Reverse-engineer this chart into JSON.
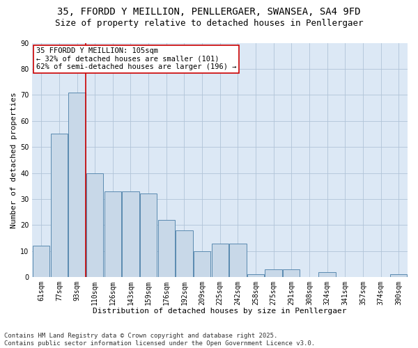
{
  "title_line1": "35, FFORDD Y MEILLION, PENLLERGAER, SWANSEA, SA4 9FD",
  "title_line2": "Size of property relative to detached houses in Penllergaer",
  "xlabel": "Distribution of detached houses by size in Penllergaer",
  "ylabel": "Number of detached properties",
  "categories": [
    "61sqm",
    "77sqm",
    "93sqm",
    "110sqm",
    "126sqm",
    "143sqm",
    "159sqm",
    "176sqm",
    "192sqm",
    "209sqm",
    "225sqm",
    "242sqm",
    "258sqm",
    "275sqm",
    "291sqm",
    "308sqm",
    "324sqm",
    "341sqm",
    "357sqm",
    "374sqm",
    "390sqm"
  ],
  "values": [
    12,
    55,
    71,
    40,
    33,
    33,
    32,
    22,
    18,
    10,
    13,
    13,
    1,
    3,
    3,
    0,
    2,
    0,
    0,
    0,
    1
  ],
  "bar_color": "#c8d8e8",
  "bar_edge_color": "#5a8ab0",
  "vline_x_index": 2,
  "vline_color": "#cc0000",
  "annotation_text": "35 FFORDD Y MEILLION: 105sqm\n← 32% of detached houses are smaller (101)\n62% of semi-detached houses are larger (196) →",
  "annotation_box_color": "#ffffff",
  "annotation_box_edge": "#cc0000",
  "ylim": [
    0,
    90
  ],
  "yticks": [
    0,
    10,
    20,
    30,
    40,
    50,
    60,
    70,
    80,
    90
  ],
  "plot_bg_color": "#dce8f5",
  "background_color": "#ffffff",
  "grid_color": "#b0c4d8",
  "footer_text": "Contains HM Land Registry data © Crown copyright and database right 2025.\nContains public sector information licensed under the Open Government Licence v3.0.",
  "title_fontsize": 10,
  "subtitle_fontsize": 9,
  "axis_label_fontsize": 8,
  "tick_fontsize": 7,
  "annotation_fontsize": 7.5,
  "footer_fontsize": 6.5
}
